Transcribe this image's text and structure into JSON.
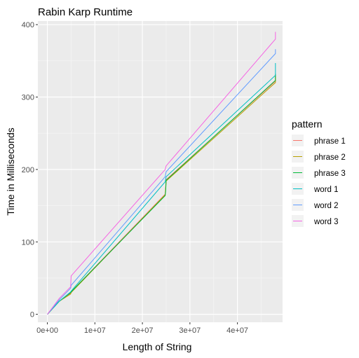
{
  "chart_data": {
    "type": "line",
    "title": "Rabin Karp Runtime",
    "xlabel": "Length of String",
    "ylabel": "Time in Milliseconds",
    "xlim": [
      -2000000,
      49500000
    ],
    "ylim": [
      -11,
      405
    ],
    "x_ticks": [
      0,
      10000000,
      20000000,
      30000000,
      40000000,
      50000000
    ],
    "x_tick_labels": [
      "0e+00",
      "1e+07",
      "2e+07",
      "3e+07",
      "4e+07",
      "5e+07"
    ],
    "y_ticks": [
      0,
      100,
      200,
      300,
      400
    ],
    "y_tick_labels": [
      "0",
      "100",
      "200",
      "300",
      "400"
    ],
    "grid": true,
    "legend": {
      "title": "pattern",
      "placement": "right"
    },
    "series": [
      {
        "name": "phrase 1",
        "color": "#F8766D",
        "points": [
          [
            0,
            0
          ],
          [
            2500000,
            18
          ],
          [
            4900000,
            29
          ],
          [
            5000000,
            31
          ],
          [
            24800000,
            166
          ],
          [
            25000000,
            186
          ],
          [
            48000000,
            322
          ],
          [
            48000000,
            331
          ]
        ]
      },
      {
        "name": "phrase 2",
        "color": "#B79F00",
        "points": [
          [
            0,
            0
          ],
          [
            2500000,
            18
          ],
          [
            4900000,
            28
          ],
          [
            5000000,
            30
          ],
          [
            24800000,
            165
          ],
          [
            25000000,
            184
          ],
          [
            48000000,
            320
          ],
          [
            48000000,
            330
          ]
        ]
      },
      {
        "name": "phrase 3",
        "color": "#00BA38",
        "points": [
          [
            0,
            0
          ],
          [
            2500000,
            18
          ],
          [
            4900000,
            30
          ],
          [
            5000000,
            31
          ],
          [
            24800000,
            164
          ],
          [
            24900000,
            170
          ],
          [
            25000000,
            185
          ],
          [
            48000000,
            323
          ],
          [
            48000000,
            332
          ]
        ]
      },
      {
        "name": "word 1",
        "color": "#00BFC4",
        "points": [
          [
            0,
            0
          ],
          [
            2500000,
            18
          ],
          [
            4900000,
            31
          ],
          [
            5000000,
            32
          ],
          [
            24800000,
            183
          ],
          [
            25000000,
            190
          ],
          [
            48000000,
            330
          ],
          [
            48000000,
            347
          ]
        ]
      },
      {
        "name": "word 2",
        "color": "#619CFF",
        "points": [
          [
            0,
            0
          ],
          [
            2500000,
            20
          ],
          [
            4900000,
            36
          ],
          [
            5000000,
            40
          ],
          [
            24800000,
            190
          ],
          [
            25000000,
            197
          ],
          [
            48000000,
            360
          ],
          [
            48000000,
            366
          ]
        ]
      },
      {
        "name": "word 3",
        "color": "#F564E3",
        "points": [
          [
            0,
            0
          ],
          [
            2500000,
            22
          ],
          [
            4900000,
            38
          ],
          [
            5000000,
            53
          ],
          [
            24800000,
            200
          ],
          [
            25000000,
            205
          ],
          [
            48000000,
            380
          ],
          [
            48000000,
            390
          ]
        ]
      }
    ]
  }
}
